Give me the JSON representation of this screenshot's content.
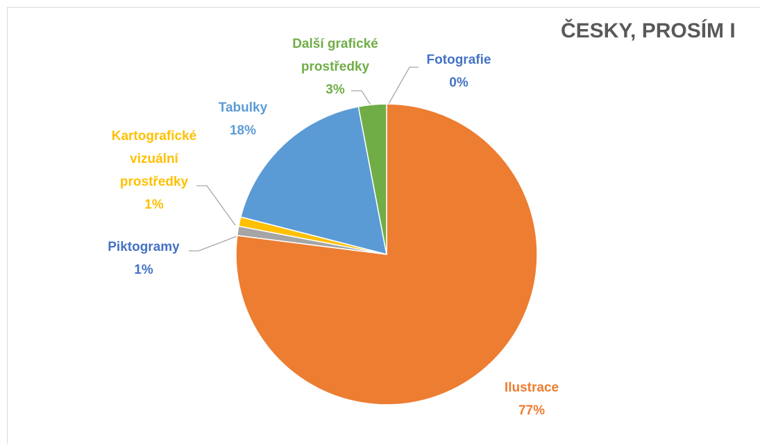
{
  "chart_data": {
    "type": "pie",
    "title": "ČESKY, PROSÍM I",
    "categories": [
      "Ilustrace",
      "Piktogramy",
      "Kartografické vizuální prostředky",
      "Tabulky",
      "Další grafické prostředky",
      "Fotografie"
    ],
    "values": [
      77,
      1,
      1,
      18,
      3,
      0
    ],
    "value_labels": [
      "77%",
      "1%",
      "1%",
      "18%",
      "3%",
      "0%"
    ],
    "colors": [
      "#ed7d31",
      "#a5a5a5",
      "#ffc000",
      "#5b9bd5",
      "#70ad47",
      "#4472c4"
    ],
    "label_colors": [
      "#ed7d31",
      "#4472c4",
      "#ffc000",
      "#5b9bd5",
      "#70ad47",
      "#4472c4"
    ]
  }
}
